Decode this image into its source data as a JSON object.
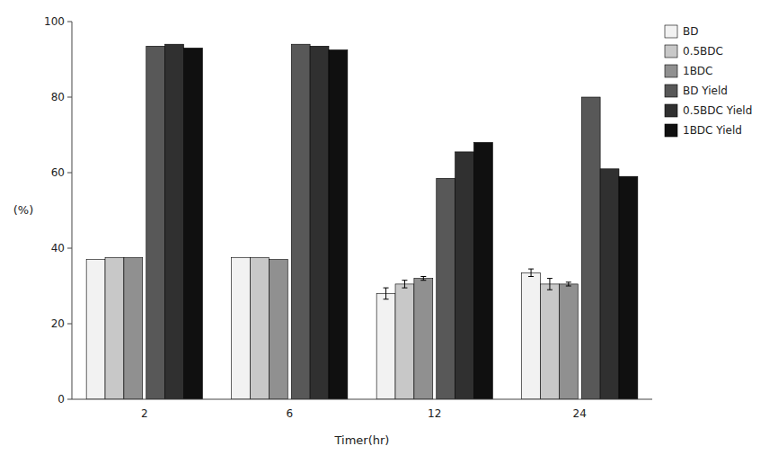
{
  "chart_data": {
    "type": "bar",
    "categories": [
      "2",
      "6",
      "12",
      "24"
    ],
    "series": [
      {
        "name": "BD",
        "color": "#f2f2f2",
        "values": [
          37.0,
          37.5,
          28.0,
          33.5
        ],
        "errors": [
          0.0,
          0.0,
          1.5,
          1.0
        ]
      },
      {
        "name": "0.5BDC",
        "color": "#c8c8c8",
        "values": [
          37.5,
          37.5,
          30.5,
          30.5
        ],
        "errors": [
          0.0,
          0.0,
          1.0,
          1.5
        ]
      },
      {
        "name": "1BDC",
        "color": "#909090",
        "values": [
          37.5,
          37.0,
          32.0,
          30.5
        ],
        "errors": [
          0.0,
          0.0,
          0.5,
          0.5
        ]
      },
      {
        "name": "BD Yield",
        "color": "#585858",
        "values": [
          93.5,
          94.0,
          58.5,
          80.0
        ],
        "errors": [
          0.0,
          0.0,
          0.0,
          0.0
        ]
      },
      {
        "name": "0.5BDC Yield",
        "color": "#303030",
        "values": [
          94.0,
          93.5,
          65.5,
          61.0
        ],
        "errors": [
          0.0,
          0.0,
          0.0,
          0.0
        ]
      },
      {
        "name": "1BDC Yield",
        "color": "#101010",
        "values": [
          93.0,
          92.5,
          68.0,
          59.0
        ],
        "errors": [
          0.0,
          0.0,
          0.0,
          0.0
        ]
      }
    ],
    "xlabel": "Timer(hr)",
    "ylabel": "(%)",
    "ylim": [
      0,
      100
    ],
    "yticks": [
      0,
      20,
      40,
      60,
      80,
      100
    ],
    "grid": false,
    "legend": "upper right"
  }
}
